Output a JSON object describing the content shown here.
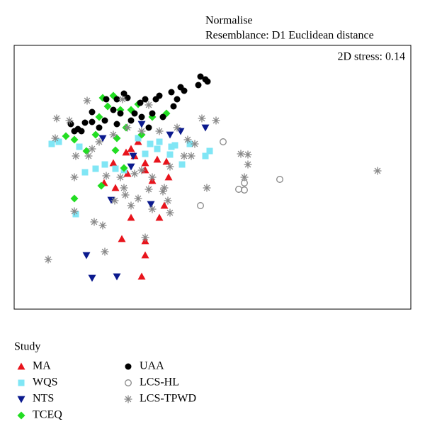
{
  "chart_data": {
    "type": "scatter",
    "title": "Normalise",
    "subtitle": "Resemblance: D1 Euclidean distance",
    "annotation": "2D stress: 0.14",
    "legend_title": "Study",
    "xlim": [
      0,
      560
    ],
    "ylim": [
      0,
      372
    ],
    "series": [
      {
        "name": "MA",
        "color": "#e8141c",
        "marker": "triangle",
        "x": [
          127,
          143,
          160,
          185,
          202,
          215,
          218,
          195,
          212,
          205,
          165,
          152,
          185,
          185,
          180,
          175,
          165,
          158,
          170,
          185,
          140
        ],
        "y": [
          178,
          171,
          191,
          196,
          211,
          208,
          186,
          181,
          146,
          129,
          129,
          99,
          96,
          76,
          46,
          236,
          226,
          221,
          216,
          206,
          206
        ]
      },
      {
        "name": "WQS",
        "color": "#80e6f5",
        "marker": "square",
        "x": [
          53,
          63,
          92,
          100,
          87,
          115,
          143,
          128,
          155,
          185,
          192,
          202,
          222,
          227,
          248,
          237,
          276,
          270,
          220,
          205,
          175
        ],
        "y": [
          233,
          236,
          229,
          193,
          134,
          198,
          198,
          204,
          196,
          219,
          233,
          226,
          229,
          231,
          233,
          204,
          223,
          216,
          218,
          236,
          241
        ]
      },
      {
        "name": "NTS",
        "color": "#0b1a8e",
        "marker": "triangle-down",
        "x": [
          270,
          235,
          220,
          125,
          165,
          137,
          193,
          102,
          110,
          145,
          168,
          180
        ],
        "y": [
          256,
          251,
          246,
          241,
          201,
          154,
          148,
          76,
          44,
          46,
          216,
          261
        ]
      },
      {
        "name": "TCEQ",
        "color": "#22dd22",
        "marker": "diamond",
        "x": [
          125,
          140,
          132,
          120,
          150,
          175,
          215,
          195,
          73,
          85,
          102,
          115,
          143,
          155,
          85,
          123,
          158,
          145,
          180,
          165
        ],
        "y": [
          298,
          301,
          286,
          271,
          281,
          289,
          276,
          271,
          244,
          239,
          223,
          246,
          224,
          199,
          156,
          174,
          256,
          241,
          246,
          281
        ]
      },
      {
        "name": "UAA",
        "color": "#000000",
        "marker": "circle",
        "x": [
          263,
          270,
          273,
          235,
          222,
          200,
          205,
          185,
          178,
          160,
          155,
          145,
          130,
          140,
          150,
          128,
          110,
          100,
          90,
          80,
          85,
          170,
          195,
          180,
          210,
          225,
          230,
          110,
          120,
          165,
          190,
          145,
          95,
          240,
          260
        ],
        "y": [
          328,
          324,
          321,
          313,
          306,
          296,
          301,
          296,
          291,
          298,
          304,
          296,
          296,
          281,
          276,
          266,
          264,
          263,
          254,
          261,
          251,
          276,
          276,
          271,
          271,
          286,
          296,
          278,
          256,
          266,
          256,
          261,
          251,
          308,
          316
        ]
      },
      {
        "name": "LCS-HL",
        "color": "#888888",
        "marker": "circle-open",
        "x": [
          295,
          263,
          317,
          325,
          375,
          325
        ],
        "y": [
          236,
          146,
          169,
          168,
          183,
          178
        ]
      },
      {
        "name": "LCS-TPWD",
        "color": "#888888",
        "marker": "asterisk",
        "x": [
          513,
          330,
          320,
          330,
          325,
          272,
          255,
          240,
          212,
          220,
          217,
          185,
          128,
          48,
          113,
          125,
          85,
          142,
          157,
          175,
          190,
          85,
          105,
          60,
          58,
          78,
          103,
          153,
          190,
          265,
          285,
          245,
          230,
          205,
          180,
          160,
          140,
          120,
          110,
          195,
          180,
          170,
          155,
          210,
          250,
          220,
          87,
          165,
          195,
          150,
          130
        ],
        "y": [
          195,
          218,
          219,
          204,
          186,
          171,
          233,
          216,
          171,
          136,
          153,
          101,
          81,
          70,
          123,
          118,
          138,
          153,
          161,
          156,
          169,
          186,
          216,
          269,
          241,
          266,
          294,
          296,
          288,
          269,
          266,
          239,
          256,
          251,
          251,
          256,
          246,
          236,
          226,
          186,
          196,
          191,
          171,
          166,
          216,
          201,
          216,
          146,
          141,
          186,
          188
        ]
      }
    ]
  }
}
